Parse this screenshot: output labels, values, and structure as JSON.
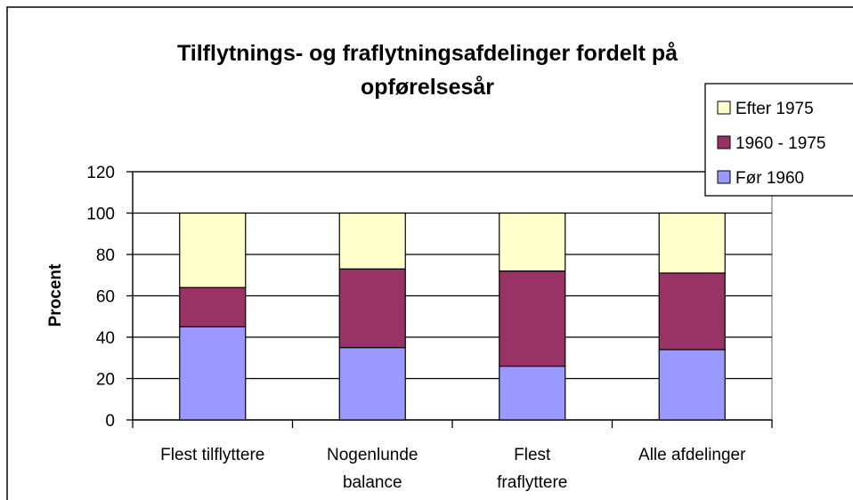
{
  "chart_data": {
    "type": "stacked_bar",
    "title": "Tilflytnings- og fraflytningsafdelinger fordelt på\nopførelsesår",
    "ylabel": "Procent",
    "categories": [
      "Flest tilflyttere",
      "Nogenlunde\nbalance",
      "Flest\nfraflyttere",
      "Alle afdelinger"
    ],
    "series": [
      {
        "name": "Før 1960",
        "color": "#9999ff",
        "values": [
          45,
          35,
          26,
          34
        ]
      },
      {
        "name": "1960 - 1975",
        "color": "#993366",
        "values": [
          19,
          38,
          46,
          37
        ]
      },
      {
        "name": "Efter 1975",
        "color": "#ffffcc",
        "values": [
          36,
          27,
          28,
          29
        ]
      }
    ],
    "ylim": [
      0,
      120
    ],
    "yticks": [
      0,
      20,
      40,
      60,
      80,
      100,
      120
    ],
    "grid": true,
    "legend": "upper right"
  }
}
